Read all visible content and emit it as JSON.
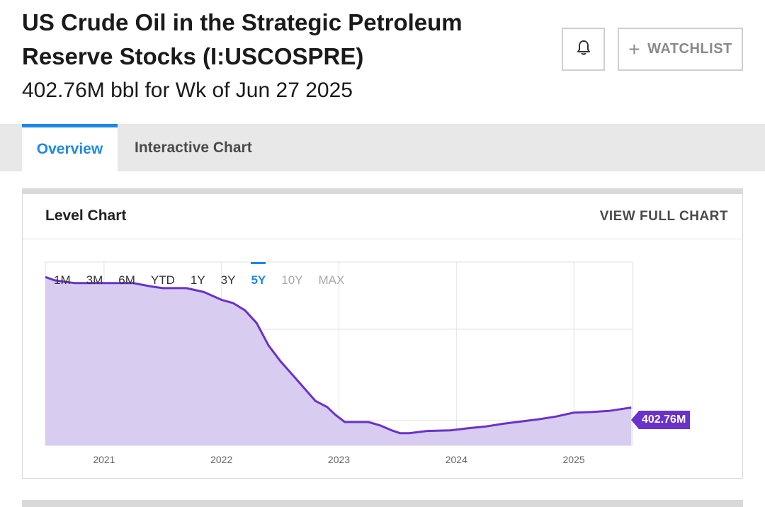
{
  "header": {
    "title": "US Crude Oil in the Strategic Petroleum Reserve Stocks (I:USCOSPRE)",
    "subtitle": "402.76M bbl for Wk of Jun 27 2025",
    "watchlist_label": "WATCHLIST",
    "bell_icon": "bell-icon",
    "plus_icon": "plus-icon"
  },
  "tabs": [
    {
      "label": "Overview",
      "active": true
    },
    {
      "label": "Interactive Chart",
      "active": false
    }
  ],
  "card": {
    "title": "Level Chart",
    "view_full_label": "VIEW FULL CHART"
  },
  "ranges": [
    {
      "label": "1M",
      "state": "normal"
    },
    {
      "label": "3M",
      "state": "normal"
    },
    {
      "label": "6M",
      "state": "normal"
    },
    {
      "label": "YTD",
      "state": "normal"
    },
    {
      "label": "1Y",
      "state": "normal"
    },
    {
      "label": "3Y",
      "state": "normal"
    },
    {
      "label": "5Y",
      "state": "active"
    },
    {
      "label": "10Y",
      "state": "disabled"
    },
    {
      "label": "MAX",
      "state": "disabled"
    }
  ],
  "colors": {
    "accent": "#1e88e5",
    "line": "#6a32c9",
    "area": "#d8ccf1"
  },
  "chart_data": {
    "type": "area",
    "title": "",
    "xlabel": "",
    "ylabel": "",
    "xticks": [
      "2021",
      "2022",
      "2023",
      "2024",
      "2025"
    ],
    "xlim": [
      2020.5,
      2025.5
    ],
    "ylim": [
      335,
      665
    ],
    "grid": true,
    "last_value_label": "402.76M",
    "series": [
      {
        "x": [
          2020.5,
          2020.58,
          2020.75,
          2021.0,
          2021.25,
          2021.4,
          2021.5,
          2021.7,
          2021.85,
          2022.0,
          2022.1,
          2022.2,
          2022.3,
          2022.4,
          2022.5,
          2022.6,
          2022.7,
          2022.8,
          2022.9,
          2022.97,
          2023.05,
          2023.15,
          2023.25,
          2023.35,
          2023.45,
          2023.52,
          2023.6,
          2023.75,
          2023.95,
          2024.1,
          2024.25,
          2024.4,
          2024.55,
          2024.7,
          2024.85,
          2025.0,
          2025.15,
          2025.3,
          2025.49
        ],
        "y": [
          638,
          632,
          627,
          627,
          627,
          621,
          618,
          618,
          611,
          597,
          591,
          578,
          555,
          515,
          487,
          463,
          439,
          415,
          404,
          390,
          377,
          377,
          377,
          371,
          362,
          357,
          357,
          361,
          362,
          366,
          369,
          374,
          378,
          382,
          387,
          394,
          395,
          397,
          403
        ]
      }
    ]
  }
}
